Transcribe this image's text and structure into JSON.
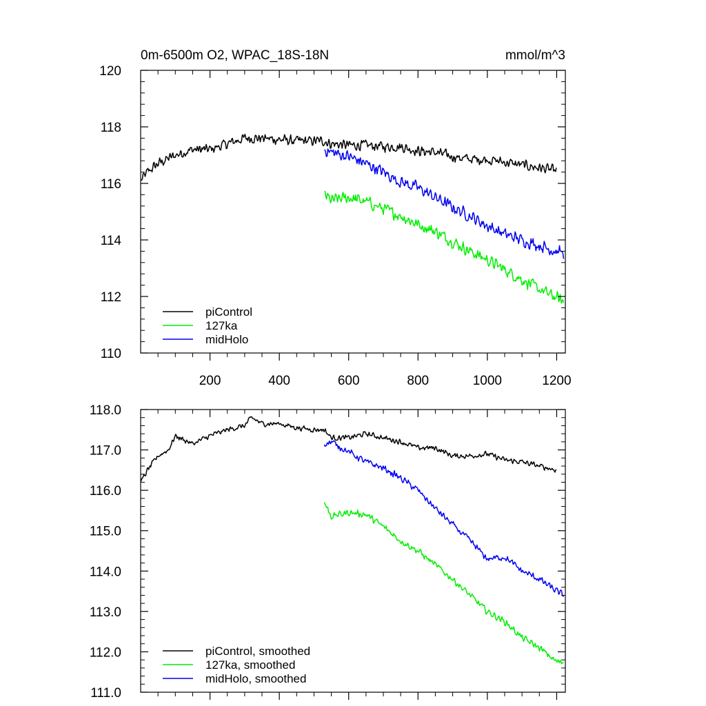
{
  "chart_data": [
    {
      "type": "line",
      "title": "0m-6500m O2, WPAC_18S-18N",
      "units": "mmol/m^3",
      "xlim": [
        0,
        1225
      ],
      "ylim": [
        110,
        120
      ],
      "xticks": [
        200,
        400,
        600,
        800,
        1000,
        1200
      ],
      "xtick_labels": [
        "200",
        "400",
        "600",
        "800",
        "1000",
        "1200"
      ],
      "yticks": [
        110,
        112,
        114,
        116,
        118,
        120
      ],
      "ytick_labels": [
        "110",
        "112",
        "114",
        "116",
        "118",
        "120"
      ],
      "legend": {
        "position": "bottom-left",
        "entries": [
          "piControl",
          "127ka",
          "midHolo"
        ]
      },
      "series": [
        {
          "name": "piControl",
          "color": "#000000",
          "noise": 0.22,
          "x": [
            1,
            20,
            50,
            100,
            150,
            200,
            250,
            300,
            350,
            400,
            450,
            500,
            530,
            550,
            600,
            650,
            700,
            750,
            800,
            850,
            900,
            950,
            1000,
            1050,
            1100,
            1150,
            1200
          ],
          "y": [
            116.1,
            116.4,
            116.7,
            117.0,
            117.2,
            117.2,
            117.4,
            117.6,
            117.6,
            117.55,
            117.5,
            117.5,
            117.5,
            117.4,
            117.35,
            117.35,
            117.3,
            117.3,
            117.15,
            117.1,
            116.95,
            116.85,
            116.85,
            116.75,
            116.65,
            116.55,
            116.45
          ]
        },
        {
          "name": "127ka",
          "color": "#00ee00",
          "noise": 0.26,
          "x": [
            530,
            550,
            600,
            650,
            700,
            750,
            800,
            850,
            900,
            950,
            1000,
            1050,
            1100,
            1150,
            1200,
            1220
          ],
          "y": [
            115.6,
            115.4,
            115.5,
            115.35,
            115.1,
            114.85,
            114.55,
            114.3,
            113.95,
            113.6,
            113.3,
            112.95,
            112.6,
            112.25,
            111.95,
            111.8
          ]
        },
        {
          "name": "midHolo",
          "color": "#0000ee",
          "noise": 0.26,
          "x": [
            530,
            550,
            600,
            650,
            700,
            750,
            800,
            850,
            900,
            950,
            1000,
            1050,
            1100,
            1150,
            1200,
            1220
          ],
          "y": [
            117.2,
            117.1,
            116.95,
            116.7,
            116.4,
            116.05,
            115.85,
            115.5,
            115.15,
            114.85,
            114.5,
            114.2,
            114.0,
            113.8,
            113.6,
            113.55
          ]
        }
      ]
    },
    {
      "type": "line",
      "title": "",
      "xlim": [
        0,
        1225
      ],
      "ylim": [
        111,
        118
      ],
      "xticks": [
        200,
        400,
        600,
        800,
        1000,
        1200
      ],
      "yticks": [
        111,
        112,
        113,
        114,
        115,
        116,
        117,
        118
      ],
      "ytick_labels": [
        "111.0",
        "112.0",
        "113.0",
        "114.0",
        "115.0",
        "116.0",
        "117.0",
        "118.0"
      ],
      "legend": {
        "position": "bottom-left",
        "entries": [
          "piControl, smoothed",
          "127ka, smoothed",
          "midHolo, smoothed"
        ]
      },
      "series": [
        {
          "name": "piControl, smoothed",
          "color": "#000000",
          "noise": 0.08,
          "x": [
            1,
            20,
            50,
            80,
            100,
            150,
            200,
            250,
            300,
            320,
            350,
            400,
            450,
            500,
            530,
            550,
            600,
            650,
            700,
            750,
            800,
            850,
            900,
            950,
            1000,
            1050,
            1100,
            1150,
            1200
          ],
          "y": [
            116.2,
            116.5,
            116.85,
            117.0,
            117.35,
            117.15,
            117.35,
            117.5,
            117.6,
            117.8,
            117.65,
            117.65,
            117.55,
            117.5,
            117.5,
            117.3,
            117.3,
            117.4,
            117.3,
            117.2,
            117.05,
            117.05,
            116.85,
            116.85,
            116.9,
            116.75,
            116.7,
            116.6,
            116.5
          ]
        },
        {
          "name": "127ka, smoothed",
          "color": "#00ee00",
          "noise": 0.1,
          "x": [
            530,
            550,
            600,
            650,
            700,
            750,
            800,
            850,
            900,
            950,
            1000,
            1050,
            1100,
            1150,
            1200,
            1220
          ],
          "y": [
            115.7,
            115.35,
            115.45,
            115.4,
            115.1,
            114.75,
            114.5,
            114.15,
            113.8,
            113.4,
            113.0,
            112.75,
            112.35,
            112.1,
            111.75,
            111.75
          ]
        },
        {
          "name": "midHolo, smoothed",
          "color": "#0000ee",
          "noise": 0.1,
          "x": [
            530,
            550,
            600,
            650,
            700,
            750,
            800,
            850,
            900,
            950,
            1000,
            1050,
            1100,
            1150,
            1200,
            1220
          ],
          "y": [
            117.15,
            117.2,
            116.95,
            116.7,
            116.55,
            116.3,
            116.0,
            115.55,
            115.15,
            114.75,
            114.3,
            114.35,
            114.0,
            113.8,
            113.5,
            113.4
          ]
        }
      ]
    }
  ]
}
